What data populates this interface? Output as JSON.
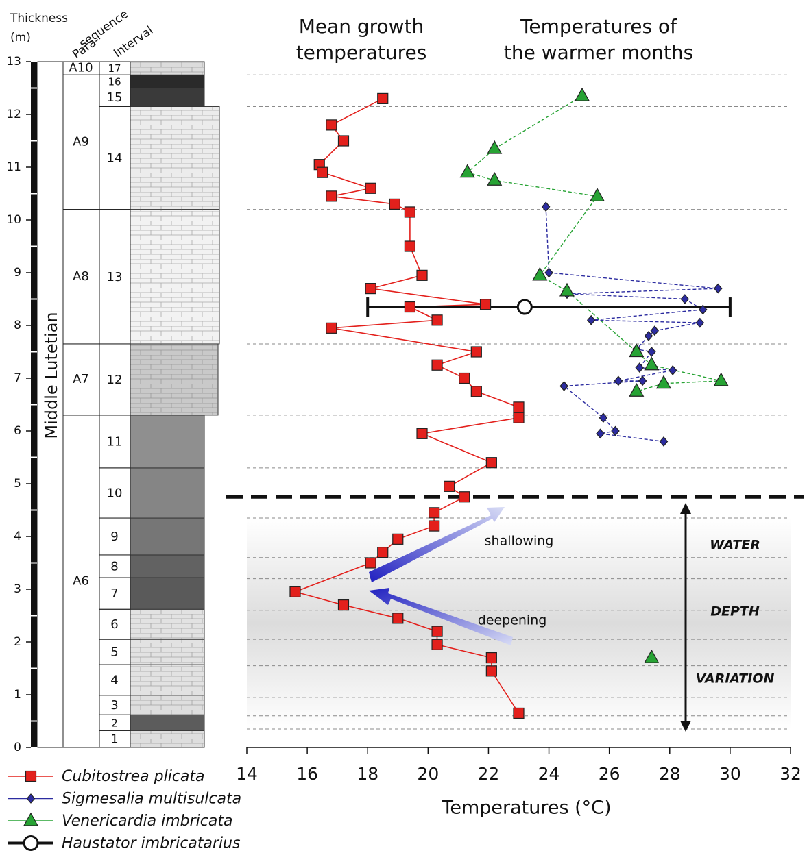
{
  "chart_data": {
    "type": "scatter",
    "titles": [
      [
        "Mean growth",
        "temperatures"
      ],
      [
        "Temperatures of",
        "the warmer months"
      ]
    ],
    "x_label": "Temperatures (°C)",
    "y_label": [
      "Thickness",
      "(m)"
    ],
    "xlim": [
      14,
      32
    ],
    "xticks": [
      14,
      16,
      18,
      20,
      22,
      24,
      26,
      28,
      30,
      32
    ],
    "ylim": [
      0,
      13
    ],
    "yticks": [
      0,
      1,
      2,
      3,
      4,
      5,
      6,
      7,
      8,
      9,
      10,
      11,
      12,
      13
    ],
    "series": [
      {
        "name": "Cubitostrea plicata",
        "color": "#e3201c",
        "marker": "square",
        "dashed": false,
        "x": [
          18.5,
          16.8,
          17.2,
          16.4,
          16.5,
          18.1,
          16.8,
          18.9,
          19.4,
          19.4,
          19.8,
          18.1,
          21.9,
          19.4,
          20.3,
          16.8,
          21.6,
          20.3,
          21.2,
          21.6,
          23,
          23,
          19.8,
          22.1,
          20.7,
          21.2,
          20.2,
          20.2,
          19,
          18.5,
          18.1,
          15.6,
          17.2,
          19,
          20.3,
          20.3,
          22.1,
          22.1,
          23
        ],
        "values": [
          12.3,
          11.8,
          11.5,
          11.05,
          10.9,
          10.6,
          10.45,
          10.3,
          10.15,
          9.5,
          8.95,
          8.7,
          8.4,
          8.35,
          8.1,
          7.95,
          7.5,
          7.25,
          7,
          6.75,
          6.45,
          6.25,
          5.95,
          5.4,
          4.95,
          4.75,
          4.45,
          4.2,
          3.95,
          3.7,
          3.5,
          2.95,
          2.7,
          2.45,
          2.2,
          1.95,
          1.7,
          1.45,
          0.65
        ]
      },
      {
        "name": "Sigmesalia multisulcata",
        "color": "#2c2ca0",
        "marker": "diamond",
        "dashed": true,
        "x": [
          23.9,
          24,
          29.6,
          24.6,
          28.5,
          29.1,
          25.4,
          29,
          27.5,
          27.3,
          26.9,
          27.4,
          27,
          28.1,
          26.3,
          27.1,
          24.5,
          25.8,
          26.2,
          25.7,
          27.8
        ],
        "values": [
          10.25,
          9,
          8.7,
          8.6,
          8.5,
          8.3,
          8.1,
          8.05,
          7.9,
          7.8,
          7.55,
          7.5,
          7.2,
          7.15,
          6.95,
          6.95,
          6.85,
          6.25,
          6,
          5.95,
          5.8
        ]
      },
      {
        "name": "Venericardia imbricata",
        "color": "#27a334",
        "marker": "triangle",
        "dashed": true,
        "x": [
          25.1,
          22.2,
          21.3,
          22.2,
          25.6,
          23.7,
          24.6,
          26.9,
          27.4,
          29.7,
          27.8,
          26.9,
          null,
          27.4
        ],
        "values": [
          12.35,
          11.35,
          10.9,
          10.75,
          10.45,
          8.95,
          8.65,
          7.5,
          7.25,
          6.95,
          6.9,
          6.75,
          null,
          1.7
        ]
      },
      {
        "name": "Haustator imbricatarius",
        "color": "#111111",
        "marker": "circle",
        "dashed": false,
        "x": [
          23.2
        ],
        "values": [
          8.35
        ],
        "x_min": [
          18
        ],
        "x_max": [
          30
        ]
      }
    ],
    "reference_lines": [
      0.35,
      0.6,
      0.95,
      1.55,
      2.05,
      2.6,
      3.2,
      3.6,
      4.35,
      5.3,
      6.3,
      7.65,
      10.2,
      12.15,
      12.75
    ],
    "major_boundary": 4.75,
    "annotations": [
      "shallowing",
      "deepening",
      "WATER",
      "DEPTH",
      "VARIATION"
    ]
  },
  "section": {
    "stage": "Middle Lutetian",
    "parasequence_header": [
      "Para-",
      "sequence"
    ],
    "interval_header": "Interval",
    "parasequences": [
      {
        "label": "A6",
        "base": 0,
        "top": 6.3
      },
      {
        "label": "A7",
        "base": 6.3,
        "top": 7.65
      },
      {
        "label": "A8",
        "base": 7.65,
        "top": 10.2
      },
      {
        "label": "A9",
        "base": 10.2,
        "top": 12.75
      },
      {
        "label": "A10",
        "base": 12.75,
        "top": 13
      }
    ],
    "intervals": [
      {
        "label": "1",
        "base": 0,
        "top": 0.32,
        "fill": "#dedede"
      },
      {
        "label": "2",
        "base": 0.32,
        "top": 0.62,
        "fill": "#5c5c5c"
      },
      {
        "label": "3",
        "base": 0.62,
        "top": 0.99,
        "fill": "#dedede"
      },
      {
        "label": "4",
        "base": 0.99,
        "top": 1.57,
        "fill": "#e2e2e2"
      },
      {
        "label": "5",
        "base": 1.57,
        "top": 2.05,
        "fill": "#e2e2e2"
      },
      {
        "label": "6",
        "base": 2.05,
        "top": 2.62,
        "fill": "#e2e2e2"
      },
      {
        "label": "7",
        "base": 2.62,
        "top": 3.22,
        "fill": "#5a5a5a"
      },
      {
        "label": "8",
        "base": 3.22,
        "top": 3.65,
        "fill": "#626262"
      },
      {
        "label": "9",
        "base": 3.65,
        "top": 4.35,
        "fill": "#767676"
      },
      {
        "label": "10",
        "base": 4.35,
        "top": 5.3,
        "fill": "#858585"
      },
      {
        "label": "11",
        "base": 5.3,
        "top": 6.3,
        "fill": "#8f8f8f"
      },
      {
        "label": "12",
        "base": 6.3,
        "top": 7.65,
        "fill": "#c9c9c9"
      },
      {
        "label": "13",
        "base": 7.65,
        "top": 10.2,
        "fill": "#f2f2f2"
      },
      {
        "label": "14",
        "base": 10.2,
        "top": 12.15,
        "fill": "#ececec"
      },
      {
        "label": "15",
        "base": 12.15,
        "top": 12.5,
        "fill": "#3a3a3a"
      },
      {
        "label": "16",
        "base": 12.5,
        "top": 12.75,
        "fill": "#2a2a2a"
      },
      {
        "label": "17",
        "base": 12.75,
        "top": 13,
        "fill": "#dcdcdc"
      }
    ]
  }
}
